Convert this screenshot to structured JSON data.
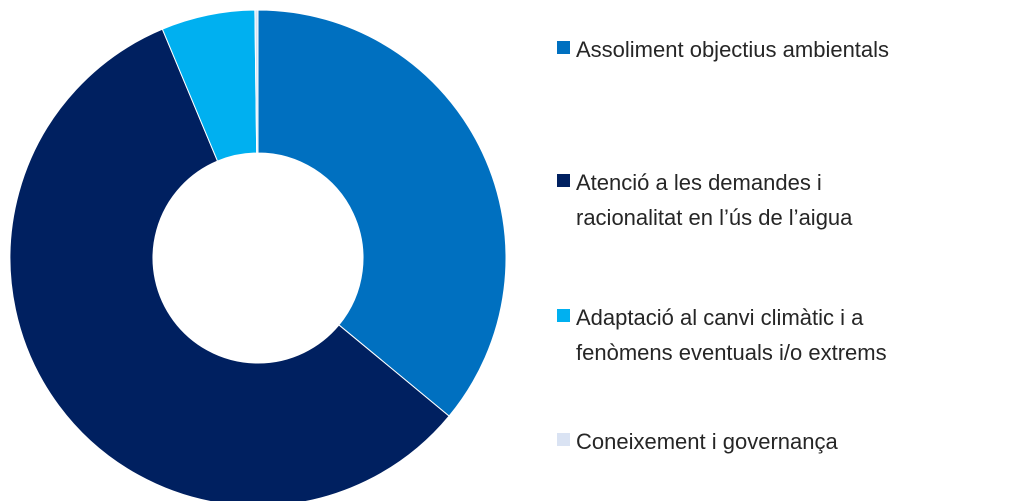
{
  "chart_data": {
    "type": "pie",
    "donut": true,
    "categories": [
      "Assoliment objectius ambientals",
      "Atenció a les demandes i\nracionalitat en l’ús de l’aigua",
      "Adaptació al canvi climàtic i a\nfenòmens eventuals i/o extrems",
      "Coneixement i governança"
    ],
    "values": [
      36,
      57.7,
      6.1,
      0.2
    ],
    "colors": [
      "#0070C0",
      "#002060",
      "#00B0F0",
      "#DAE3F3"
    ],
    "legend": "right"
  }
}
